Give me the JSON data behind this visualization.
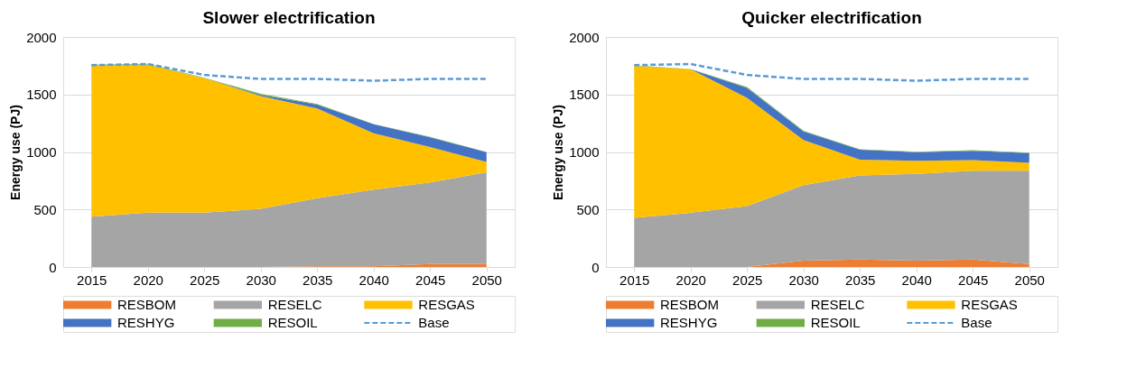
{
  "chart_data": [
    {
      "type": "area",
      "title": "Slower electrification",
      "ylabel": "Energy use (PJ)",
      "stacked": true,
      "grid": "y",
      "legend": "bottom",
      "categories": [
        "2015",
        "2020",
        "2025",
        "2030",
        "2035",
        "2040",
        "2045",
        "2050"
      ],
      "ylim": [
        0,
        2000
      ],
      "yticks": [
        0,
        500,
        1000,
        1500,
        2000
      ],
      "series": [
        {
          "name": "RESBOM",
          "color": "#ed7d31",
          "values": [
            0,
            0,
            0,
            0,
            5,
            5,
            25,
            25
          ]
        },
        {
          "name": "RESELC",
          "color": "#a5a5a5",
          "values": [
            438,
            472,
            472,
            506,
            593,
            668,
            710,
            799
          ]
        },
        {
          "name": "RESGAS",
          "color": "#ffc000",
          "values": [
            1316,
            1289,
            1169,
            981,
            780,
            489,
            308,
            89
          ]
        },
        {
          "name": "RESHYG",
          "color": "#4472c4",
          "values": [
            0,
            0,
            0,
            10,
            34,
            79,
            85,
            85
          ]
        },
        {
          "name": "RESOIL",
          "color": "#70ad47",
          "values": [
            5,
            5,
            5,
            8,
            5,
            3,
            3,
            2
          ]
        },
        {
          "name": "Base",
          "type": "line",
          "line_style": "dashed",
          "color": "#5b9bd5",
          "values": [
            1755,
            1765,
            1670,
            1635,
            1635,
            1620,
            1635,
            1635
          ]
        }
      ]
    },
    {
      "type": "area",
      "title": "Quicker electrification",
      "ylabel": "Energy use (PJ)",
      "stacked": true,
      "grid": "y",
      "legend": "bottom",
      "categories": [
        "2015",
        "2020",
        "2025",
        "2030",
        "2035",
        "2040",
        "2045",
        "2050"
      ],
      "ylim": [
        0,
        2000
      ],
      "yticks": [
        0,
        500,
        1000,
        1500,
        2000
      ],
      "series": [
        {
          "name": "RESBOM",
          "color": "#ed7d31",
          "values": [
            0,
            0,
            0,
            55,
            65,
            55,
            65,
            25
          ]
        },
        {
          "name": "RESELC",
          "color": "#a5a5a5",
          "values": [
            427,
            472,
            530,
            656,
            732,
            755,
            773,
            813
          ]
        },
        {
          "name": "RESGAS",
          "color": "#ffc000",
          "values": [
            1323,
            1248,
            940,
            393,
            136,
            113,
            92,
            68
          ]
        },
        {
          "name": "RESHYG",
          "color": "#4472c4",
          "values": [
            0,
            0,
            86,
            75,
            86,
            75,
            79,
            85
          ]
        },
        {
          "name": "RESOIL",
          "color": "#70ad47",
          "values": [
            2,
            2,
            8,
            6,
            5,
            3,
            6,
            3
          ]
        },
        {
          "name": "Base",
          "type": "line",
          "line_style": "dashed",
          "color": "#5b9bd5",
          "values": [
            1755,
            1765,
            1670,
            1635,
            1635,
            1620,
            1635,
            1635
          ]
        }
      ]
    }
  ]
}
